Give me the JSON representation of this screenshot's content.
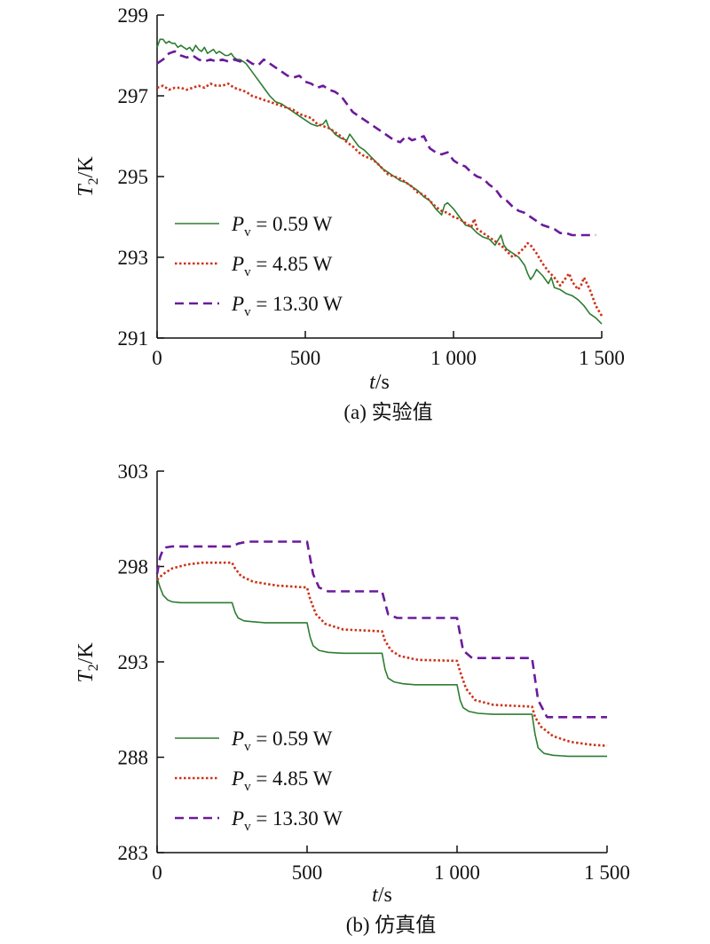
{
  "chart_data": [
    {
      "type": "line",
      "caption": "(a) 实验值",
      "xlabel_var": "t",
      "xlabel_unit": "/s",
      "ylabel_var": "T",
      "ylabel_sub": "2",
      "ylabel_unit": "/K",
      "xlim": [
        0,
        1500
      ],
      "ylim": [
        291,
        299
      ],
      "xticks": [
        0,
        500,
        1000,
        1500
      ],
      "xtick_labels": [
        "0",
        "500",
        "1 000",
        "1 500"
      ],
      "yticks": [
        291,
        293,
        295,
        297,
        299
      ],
      "ytick_labels": [
        "291",
        "293",
        "295",
        "297",
        "299"
      ],
      "legend_position": "lower-left",
      "series": [
        {
          "name": "P_v = 0.59 W",
          "legend_var": "P",
          "legend_sub": "v",
          "legend_value": " = 0.59 W",
          "color": "#2e7d32",
          "style": "solid",
          "x": [
            0,
            10,
            20,
            30,
            40,
            50,
            60,
            70,
            80,
            90,
            100,
            110,
            120,
            130,
            140,
            150,
            160,
            170,
            180,
            190,
            200,
            210,
            220,
            230,
            240,
            250,
            260,
            270,
            280,
            290,
            300,
            320,
            340,
            360,
            380,
            400,
            420,
            440,
            460,
            480,
            500,
            520,
            540,
            560,
            570,
            580,
            590,
            600,
            620,
            640,
            650,
            660,
            680,
            700,
            720,
            740,
            760,
            780,
            800,
            820,
            840,
            860,
            880,
            900,
            920,
            940,
            960,
            970,
            980,
            1000,
            1020,
            1040,
            1060,
            1080,
            1100,
            1120,
            1140,
            1160,
            1170,
            1180,
            1200,
            1220,
            1240,
            1250,
            1260,
            1270,
            1280,
            1300,
            1320,
            1330,
            1340,
            1360,
            1380,
            1400,
            1420,
            1440,
            1460,
            1480,
            1500
          ],
          "y": [
            298.2,
            298.4,
            298.4,
            298.3,
            298.35,
            298.3,
            298.3,
            298.2,
            298.25,
            298.2,
            298.15,
            298.2,
            298.1,
            298.25,
            298.15,
            298.1,
            298.2,
            298.05,
            298.1,
            298.15,
            298.05,
            298.1,
            298.05,
            298.0,
            298.0,
            298.05,
            297.95,
            297.9,
            297.9,
            297.85,
            297.8,
            297.6,
            297.4,
            297.2,
            297.0,
            296.85,
            296.8,
            296.7,
            296.6,
            296.5,
            296.4,
            296.3,
            296.25,
            296.3,
            296.4,
            296.2,
            296.15,
            296.05,
            295.95,
            295.9,
            296.05,
            295.95,
            295.75,
            295.65,
            295.5,
            295.35,
            295.2,
            295.1,
            295.0,
            294.9,
            294.85,
            294.75,
            294.65,
            294.5,
            294.4,
            294.2,
            294.05,
            294.3,
            294.35,
            294.2,
            294.0,
            293.8,
            293.75,
            293.6,
            293.5,
            293.45,
            293.3,
            293.55,
            293.3,
            293.2,
            293.1,
            293.0,
            292.8,
            292.6,
            292.45,
            292.55,
            292.7,
            292.55,
            292.35,
            292.5,
            292.25,
            292.2,
            292.1,
            292.05,
            291.95,
            291.8,
            291.6,
            291.5,
            291.35
          ]
        },
        {
          "name": "P_v = 4.85 W",
          "legend_var": "P",
          "legend_sub": "v",
          "legend_value": " = 4.85 W",
          "color": "#cc3319",
          "style": "dotted",
          "x": [
            0,
            20,
            40,
            60,
            80,
            100,
            120,
            140,
            160,
            180,
            200,
            220,
            240,
            260,
            280,
            300,
            320,
            340,
            360,
            380,
            400,
            420,
            440,
            460,
            480,
            500,
            520,
            540,
            560,
            580,
            600,
            620,
            640,
            660,
            680,
            700,
            720,
            740,
            760,
            780,
            800,
            820,
            840,
            860,
            880,
            900,
            920,
            940,
            960,
            980,
            1000,
            1020,
            1040,
            1060,
            1070,
            1080,
            1100,
            1120,
            1140,
            1160,
            1180,
            1200,
            1220,
            1240,
            1250,
            1260,
            1280,
            1300,
            1320,
            1340,
            1360,
            1380,
            1390,
            1400,
            1420,
            1430,
            1440,
            1460,
            1480,
            1500
          ],
          "y": [
            297.2,
            297.25,
            297.15,
            297.2,
            297.2,
            297.15,
            297.2,
            297.25,
            297.2,
            297.3,
            297.25,
            297.25,
            297.3,
            297.2,
            297.15,
            297.1,
            297.0,
            296.95,
            296.9,
            296.85,
            296.8,
            296.75,
            296.7,
            296.65,
            296.55,
            296.5,
            296.45,
            296.3,
            296.25,
            296.2,
            296.1,
            296.0,
            295.85,
            295.75,
            295.6,
            295.5,
            295.45,
            295.35,
            295.2,
            295.05,
            295.0,
            294.95,
            294.85,
            294.75,
            294.6,
            294.55,
            294.4,
            294.25,
            294.15,
            294.1,
            294.0,
            293.95,
            293.85,
            293.75,
            293.95,
            293.7,
            293.6,
            293.5,
            293.4,
            293.3,
            293.15,
            293.0,
            293.1,
            293.25,
            293.35,
            293.3,
            293.1,
            292.85,
            292.65,
            292.5,
            292.3,
            292.5,
            292.6,
            292.4,
            292.2,
            292.3,
            292.5,
            292.2,
            291.8,
            291.55
          ]
        },
        {
          "name": "P_v = 13.30 W",
          "legend_var": "P",
          "legend_sub": "v",
          "legend_value": " = 13.30 W",
          "color": "#6a1b9a",
          "style": "dashed",
          "x": [
            0,
            20,
            40,
            60,
            80,
            100,
            120,
            140,
            160,
            180,
            200,
            220,
            240,
            260,
            280,
            300,
            320,
            340,
            360,
            380,
            400,
            420,
            440,
            460,
            480,
            500,
            520,
            540,
            560,
            580,
            600,
            620,
            640,
            660,
            680,
            700,
            720,
            740,
            760,
            780,
            800,
            820,
            840,
            860,
            880,
            900,
            920,
            940,
            960,
            980,
            1000,
            1020,
            1040,
            1060,
            1080,
            1100,
            1120,
            1140,
            1160,
            1180,
            1200,
            1220,
            1240,
            1260,
            1280,
            1300,
            1320,
            1340,
            1360,
            1380,
            1400,
            1420,
            1440,
            1460,
            1480
          ],
          "y": [
            297.8,
            297.9,
            298.05,
            298.1,
            298.0,
            297.95,
            298.0,
            297.9,
            297.85,
            297.9,
            297.85,
            297.9,
            297.85,
            297.9,
            297.85,
            297.9,
            297.8,
            297.75,
            297.9,
            297.8,
            297.7,
            297.6,
            297.5,
            297.45,
            297.5,
            297.35,
            297.3,
            297.2,
            297.25,
            297.15,
            297.1,
            297.0,
            296.8,
            296.6,
            296.5,
            296.4,
            296.3,
            296.2,
            296.1,
            296.0,
            295.9,
            295.85,
            296.0,
            295.9,
            295.95,
            296.0,
            295.7,
            295.6,
            295.55,
            295.6,
            295.4,
            295.3,
            295.25,
            295.1,
            295.0,
            294.95,
            294.8,
            294.7,
            294.5,
            294.4,
            294.25,
            294.15,
            294.1,
            294.0,
            293.9,
            293.8,
            293.75,
            293.7,
            293.6,
            293.6,
            293.55,
            293.55,
            293.55,
            293.55,
            293.55
          ]
        }
      ]
    },
    {
      "type": "line",
      "caption": "(b) 仿真值",
      "xlabel_var": "t",
      "xlabel_unit": "/s",
      "ylabel_var": "T",
      "ylabel_sub": "2",
      "ylabel_unit": "/K",
      "xlim": [
        0,
        1500
      ],
      "ylim": [
        283,
        303
      ],
      "xticks": [
        0,
        500,
        1000,
        1500
      ],
      "xtick_labels": [
        "0",
        "500",
        "1 000",
        "1 500"
      ],
      "yticks": [
        283,
        288,
        293,
        298,
        303
      ],
      "ytick_labels": [
        "283",
        "288",
        "293",
        "298",
        "303"
      ],
      "legend_position": "lower-left",
      "series": [
        {
          "name": "P_v = 0.59 W",
          "legend_var": "P",
          "legend_sub": "v",
          "legend_value": " = 0.59 W",
          "color": "#2e7d32",
          "style": "solid",
          "x": [
            0,
            10,
            20,
            35,
            50,
            80,
            120,
            180,
            250,
            260,
            270,
            290,
            320,
            360,
            400,
            500,
            510,
            520,
            540,
            570,
            620,
            750,
            760,
            770,
            790,
            820,
            860,
            1000,
            1010,
            1020,
            1040,
            1070,
            1120,
            1250,
            1260,
            1270,
            1290,
            1320,
            1370,
            1500
          ],
          "y": [
            297.4,
            296.9,
            296.5,
            296.25,
            296.15,
            296.1,
            296.1,
            296.1,
            296.1,
            295.6,
            295.3,
            295.15,
            295.1,
            295.05,
            295.05,
            295.05,
            294.3,
            293.85,
            293.6,
            293.5,
            293.45,
            293.45,
            292.6,
            292.15,
            291.95,
            291.85,
            291.8,
            291.8,
            291.0,
            290.6,
            290.4,
            290.3,
            290.25,
            290.25,
            289.2,
            288.5,
            288.2,
            288.1,
            288.05,
            288.05
          ]
        },
        {
          "name": "P_v = 4.85 W",
          "legend_var": "P",
          "legend_sub": "v",
          "legend_value": " = 4.85 W",
          "color": "#cc3319",
          "style": "dotted",
          "x": [
            0,
            20,
            50,
            100,
            150,
            200,
            250,
            260,
            280,
            320,
            400,
            500,
            510,
            530,
            560,
            620,
            750,
            760,
            780,
            810,
            870,
            1000,
            1010,
            1030,
            1060,
            1120,
            1250,
            1260,
            1280,
            1320,
            1380,
            1450,
            1500
          ],
          "y": [
            297.3,
            297.6,
            297.9,
            298.1,
            298.2,
            298.2,
            298.2,
            297.9,
            297.5,
            297.2,
            297.0,
            296.9,
            296.3,
            295.5,
            295.0,
            294.7,
            294.6,
            294.1,
            293.6,
            293.3,
            293.1,
            293.05,
            292.5,
            291.6,
            291.0,
            290.75,
            290.65,
            290.1,
            289.6,
            289.1,
            288.8,
            288.65,
            288.6
          ]
        },
        {
          "name": "P_v = 13.30 W",
          "legend_var": "P",
          "legend_sub": "v",
          "legend_value": " = 13.30 W",
          "color": "#6a1b9a",
          "style": "dashed",
          "x": [
            0,
            10,
            20,
            30,
            50,
            100,
            200,
            250,
            270,
            300,
            400,
            500,
            520,
            540,
            570,
            620,
            750,
            770,
            800,
            1000,
            1020,
            1050,
            1250,
            1270,
            1300,
            1500
          ],
          "y": [
            297.6,
            298.5,
            298.9,
            299.0,
            299.05,
            299.05,
            299.05,
            299.05,
            299.2,
            299.3,
            299.3,
            299.3,
            297.6,
            296.9,
            296.7,
            296.7,
            296.7,
            295.5,
            295.3,
            295.3,
            293.6,
            293.2,
            293.2,
            291.0,
            290.1,
            290.1
          ]
        }
      ]
    }
  ]
}
